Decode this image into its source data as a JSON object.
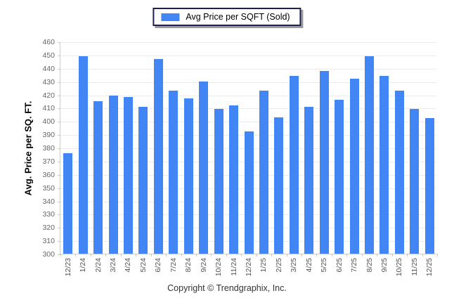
{
  "legend": {
    "label": "Avg Price per SQFT (Sold)",
    "swatch_color": "#4285f4"
  },
  "chart_data": {
    "type": "bar",
    "title": "",
    "xlabel": "",
    "ylabel": "Avg. Price per SQ. FT.",
    "ylim": [
      300,
      460
    ],
    "ytick_step": 10,
    "grid": true,
    "legend_position": "top-center",
    "bar_color": "#4285f4",
    "categories": [
      "12/23",
      "1/24",
      "2/24",
      "3/24",
      "4/24",
      "5/24",
      "6/24",
      "7/24",
      "8/24",
      "9/24",
      "10/24",
      "11/24",
      "12/24",
      "1/25",
      "2/25",
      "3/25",
      "4/25",
      "5/25",
      "6/25",
      "7/25",
      "8/25",
      "9/25",
      "10/25",
      "11/25",
      "12/25"
    ],
    "series": [
      {
        "name": "Avg Price per SQFT (Sold)",
        "values": [
          376,
          449,
          415,
          419,
          418,
          411,
          447,
          423,
          417,
          430,
          409,
          412,
          392,
          423,
          403,
          434,
          411,
          438,
          416,
          432,
          449,
          434,
          423,
          409,
          402
        ]
      }
    ]
  },
  "footer": {
    "copyright": "Copyright © Trendgraphix, Inc."
  }
}
